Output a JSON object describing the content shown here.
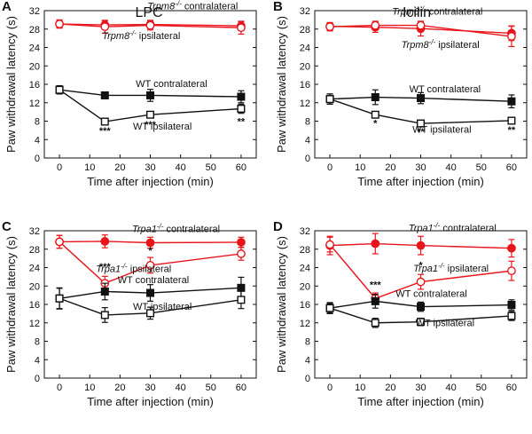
{
  "colors": {
    "red": "#e8151b",
    "black": "#111111"
  },
  "chart_data": [
    {
      "type": "line",
      "panel": "A",
      "title": "LPC",
      "xlabel": "Time after injection (min)",
      "ylabel": "Paw withdrawal latency (s)",
      "xlim": [
        -5,
        65
      ],
      "ylim": [
        0,
        32
      ],
      "xticks": [
        0,
        10,
        20,
        30,
        40,
        50,
        60
      ],
      "yticks": [
        0,
        4,
        8,
        12,
        16,
        20,
        24,
        28,
        32
      ],
      "x": [
        0,
        15,
        30,
        60
      ],
      "series": [
        {
          "name": "Trpm8 contralateral",
          "color": "red",
          "marker": "filled",
          "values": [
            29.1,
            28.9,
            29.0,
            28.7
          ],
          "errors": [
            0.8,
            0.9,
            0.9,
            0.9
          ]
        },
        {
          "name": "Trpm8 ipsilateral",
          "color": "red",
          "marker": "open",
          "values": [
            29.1,
            28.5,
            28.8,
            28.3
          ],
          "errors": [
            0.9,
            1.4,
            1.0,
            1.4
          ]
        },
        {
          "name": "WT contralateral",
          "color": "black",
          "marker": "filled",
          "values": [
            14.8,
            13.6,
            13.6,
            13.3
          ],
          "errors": [
            0.9,
            0.6,
            1.3,
            1.3
          ]
        },
        {
          "name": "WT ipsilateral",
          "color": "black",
          "marker": "open",
          "values": [
            14.8,
            7.9,
            9.4,
            10.7
          ],
          "errors": [
            0.8,
            0.5,
            0.6,
            1.0
          ]
        }
      ],
      "annotations": [
        {
          "text": "Trpm8",
          "sup": "-/-",
          "rest": " contralateral",
          "x": 44,
          "y": 32.3,
          "color": "red",
          "italic": true
        },
        {
          "text": "Trpm8",
          "sup": "-/-",
          "rest": " ipsilateral",
          "x": 27,
          "y": 25.8,
          "color": "red",
          "italic": true
        },
        {
          "text": "WT contralateral",
          "x": 37,
          "y": 15.4,
          "color": "black"
        },
        {
          "text": "WT ipsilateral",
          "x": 34,
          "y": 6.2,
          "color": "black"
        }
      ],
      "significance": [
        {
          "text": "***",
          "x": 15,
          "y": 5.2
        },
        {
          "text": "***",
          "x": 30,
          "y": 6.6
        },
        {
          "text": "**",
          "x": 60,
          "y": 7.2
        }
      ]
    },
    {
      "type": "line",
      "panel": "B",
      "title": "Icilin",
      "xlabel": "Time after injection (min)",
      "ylabel": "Paw withdrawal latency (s)",
      "xlim": [
        -5,
        65
      ],
      "ylim": [
        0,
        32
      ],
      "xticks": [
        0,
        10,
        20,
        30,
        40,
        50,
        60
      ],
      "yticks": [
        0,
        4,
        8,
        12,
        16,
        20,
        24,
        28,
        32
      ],
      "x": [
        0,
        15,
        30,
        60
      ],
      "series": [
        {
          "name": "Trpm8 contralateral",
          "color": "red",
          "marker": "filled",
          "values": [
            28.6,
            28.4,
            28.1,
            27.1
          ],
          "errors": [
            0.8,
            1.1,
            1.6,
            1.6
          ]
        },
        {
          "name": "Trpm8 ipsilateral",
          "color": "red",
          "marker": "open",
          "values": [
            28.5,
            28.8,
            28.8,
            26.4
          ],
          "errors": [
            0.9,
            0.9,
            0.8,
            2.2
          ]
        },
        {
          "name": "WT contralateral",
          "color": "black",
          "marker": "filled",
          "values": [
            12.8,
            13.2,
            13.0,
            12.3
          ],
          "errors": [
            1.1,
            1.6,
            1.2,
            1.4
          ]
        },
        {
          "name": "WT ipsilateral",
          "color": "black",
          "marker": "open",
          "values": [
            12.8,
            9.4,
            7.5,
            8.1
          ],
          "errors": [
            1.1,
            0.6,
            0.4,
            0.7
          ]
        }
      ],
      "annotations": [
        {
          "text": "Trpm8",
          "sup": "-/-",
          "rest": " contralateral",
          "x": 35.5,
          "y": 31.1,
          "color": "red",
          "italic": true
        },
        {
          "text": "Trpm8",
          "sup": "-/-",
          "rest": " ipsilateral",
          "x": 36.5,
          "y": 23.9,
          "color": "red",
          "italic": true
        },
        {
          "text": "WT contralateral",
          "x": 38,
          "y": 14.3,
          "color": "black"
        },
        {
          "text": "WT ipsilateral",
          "x": 37,
          "y": 5.5,
          "color": "black"
        }
      ],
      "significance": [
        {
          "text": "*",
          "x": 15,
          "y": 6.8
        },
        {
          "text": "**",
          "x": 30,
          "y": 5.0
        },
        {
          "text": "**",
          "x": 60,
          "y": 5.4
        }
      ]
    },
    {
      "type": "line",
      "panel": "C",
      "title": "",
      "xlabel": "Time after injection (min)",
      "ylabel": "Paw withdrawal latency (s)",
      "xlim": [
        -5,
        65
      ],
      "ylim": [
        0,
        32
      ],
      "xticks": [
        0,
        10,
        20,
        30,
        40,
        50,
        60
      ],
      "yticks": [
        0,
        4,
        8,
        12,
        16,
        20,
        24,
        28,
        32
      ],
      "x": [
        0,
        15,
        30,
        60
      ],
      "series": [
        {
          "name": "Trpa1 contralateral",
          "color": "red",
          "marker": "filled",
          "values": [
            29.6,
            29.7,
            29.4,
            29.5
          ],
          "errors": [
            1.4,
            1.4,
            1.2,
            1.1
          ]
        },
        {
          "name": "Trpa1 ipsilateral",
          "color": "red",
          "marker": "open",
          "values": [
            29.6,
            20.6,
            24.5,
            27.0
          ],
          "errors": [
            1.4,
            1.5,
            1.7,
            1.4
          ]
        },
        {
          "name": "WT contralateral",
          "color": "black",
          "marker": "filled",
          "values": [
            17.3,
            18.8,
            18.5,
            19.6
          ],
          "errors": [
            2.2,
            1.8,
            1.8,
            2.3
          ]
        },
        {
          "name": "WT ipsilateral",
          "color": "black",
          "marker": "open",
          "values": [
            17.3,
            13.7,
            14.1,
            17.0
          ],
          "errors": [
            2.3,
            1.6,
            1.3,
            1.9
          ]
        }
      ],
      "annotations": [
        {
          "text": "Trpa1",
          "sup": "-/-",
          "rest": " contralateral",
          "x": 38.5,
          "y": 31.7,
          "color": "red",
          "italic": true
        },
        {
          "text": "Trpa1",
          "sup": "-/-",
          "rest": " ipsilateral",
          "x": 24.5,
          "y": 23.0,
          "color": "red",
          "italic": true
        },
        {
          "text": "WT contralateral",
          "x": 31,
          "y": 20.6,
          "color": "black"
        },
        {
          "text": "WT ipsilateral",
          "x": 34,
          "y": 14.8,
          "color": "black"
        }
      ],
      "significance": [
        {
          "text": "***",
          "x": 15,
          "y": 23.5
        },
        {
          "text": "*",
          "x": 30,
          "y": 27.0
        }
      ]
    },
    {
      "type": "line",
      "panel": "D",
      "title": "",
      "xlabel": "Time after injection (min)",
      "ylabel": "Paw withdrawal latency (s)",
      "xlim": [
        -5,
        65
      ],
      "ylim": [
        0,
        32
      ],
      "xticks": [
        0,
        10,
        20,
        30,
        40,
        50,
        60
      ],
      "yticks": [
        0,
        4,
        8,
        12,
        16,
        20,
        24,
        28,
        32
      ],
      "x": [
        0,
        15,
        30,
        60
      ],
      "series": [
        {
          "name": "Trpa1 contralateral",
          "color": "red",
          "marker": "filled",
          "values": [
            28.8,
            29.2,
            28.8,
            28.2
          ],
          "errors": [
            2.0,
            2.2,
            2.0,
            1.9
          ]
        },
        {
          "name": "Trpa1 ipsilateral",
          "color": "red",
          "marker": "open",
          "values": [
            29.0,
            17.3,
            20.9,
            23.3
          ],
          "errors": [
            1.6,
            1.2,
            1.6,
            2.1
          ]
        },
        {
          "name": "WT contralateral",
          "color": "black",
          "marker": "filled",
          "values": [
            15.2,
            16.7,
            15.5,
            15.9
          ],
          "errors": [
            1.2,
            1.5,
            1.0,
            1.1
          ]
        },
        {
          "name": "WT ipsilateral",
          "color": "black",
          "marker": "open",
          "values": [
            15.2,
            12.0,
            12.2,
            13.5
          ],
          "errors": [
            1.0,
            1.0,
            0.8,
            1.0
          ]
        }
      ],
      "annotations": [
        {
          "text": "Trpa1",
          "sup": "-/-",
          "rest": " contralateral",
          "x": 40.5,
          "y": 31.9,
          "color": "red",
          "italic": true
        },
        {
          "text": "Trpa1",
          "sup": "-/-",
          "rest": " ipsilateral",
          "x": 40,
          "y": 23.1,
          "color": "red",
          "italic": true
        },
        {
          "text": "WT contralateral",
          "x": 33.5,
          "y": 17.6,
          "color": "black"
        },
        {
          "text": "WT ipsilateral",
          "x": 38,
          "y": 11.3,
          "color": "black"
        }
      ],
      "significance": [
        {
          "text": "***",
          "x": 15,
          "y": 19.6
        },
        {
          "text": "*",
          "x": 30,
          "y": 23.8
        }
      ]
    }
  ]
}
